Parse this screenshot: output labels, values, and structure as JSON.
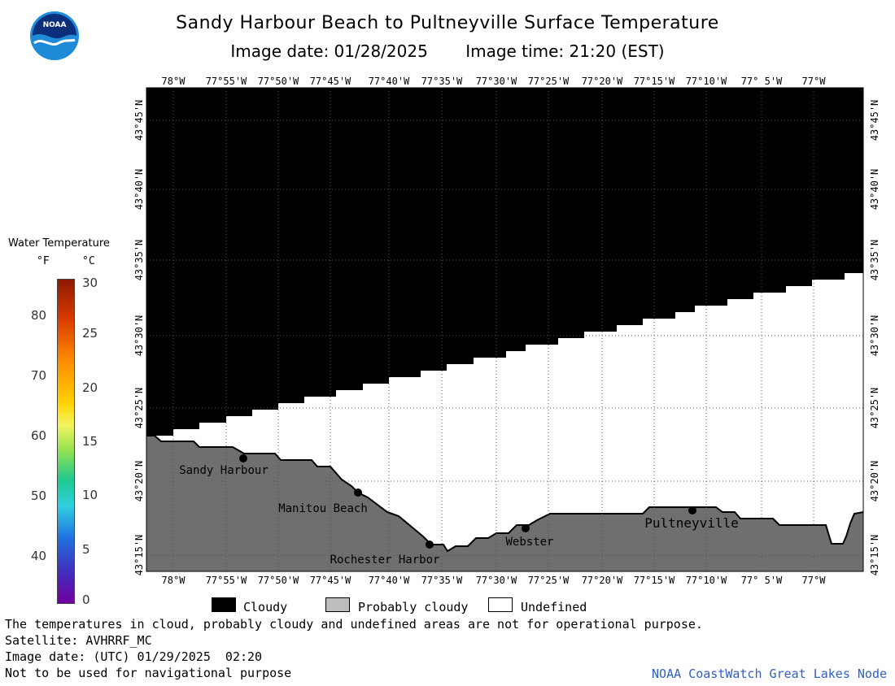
{
  "header": {
    "title": "Sandy Harbour Beach to Pultneyville Surface Temperature",
    "image_date": "Image date: 01/28/2025",
    "image_time": "Image time: 21:20 (EST)",
    "logo_text": "NOAA"
  },
  "map": {
    "lon_labels": [
      "78°W",
      "77°55'W",
      "77°50'W",
      "77°45'W",
      "77°40'W",
      "77°35'W",
      "77°30'W",
      "77°25'W",
      "77°20'W",
      "77°15'W",
      "77°10'W",
      "77° 5'W",
      "77°W"
    ],
    "lat_labels": [
      "43°45'N",
      "43°40'N",
      "43°35'N",
      "43°30'N",
      "43°25'N",
      "43°20'N",
      "43°15'N"
    ],
    "colors": {
      "cloud": "#000000",
      "land": "#6f6f6f",
      "undefined": "#ffffff",
      "grid": "#555555"
    },
    "places": [
      {
        "name": "Sandy Harbour"
      },
      {
        "name": "Manitou Beach"
      },
      {
        "name": "Rochester Harbor"
      },
      {
        "name": "Webster"
      },
      {
        "name": "Pultneyville"
      }
    ]
  },
  "colorbar": {
    "title": "Water Temperature",
    "unit_f": "°F",
    "unit_c": "°C",
    "f_labels": [
      "80",
      "70",
      "60",
      "50",
      "40"
    ],
    "c_labels": [
      "30",
      "25",
      "20",
      "15",
      "10",
      "5",
      "0"
    ]
  },
  "legend": {
    "cloudy": "Cloudy",
    "probably_cloudy": "Probably cloudy",
    "undefined": "Undefined",
    "colors": {
      "cloudy": "#000000",
      "probably_cloudy": "#bdbdbd",
      "undefined": "#ffffff"
    }
  },
  "footer": {
    "note": "The temperatures in cloud, probably cloudy and undefined areas are not for operational purpose.",
    "satellite": "Satellite: AVHRRF_MC",
    "utc_date": "Image date: (UTC) 01/29/2025  02:20",
    "disclaimer": "Not to be used for navigational purpose",
    "credit": "NOAA CoastWatch Great Lakes Node"
  }
}
